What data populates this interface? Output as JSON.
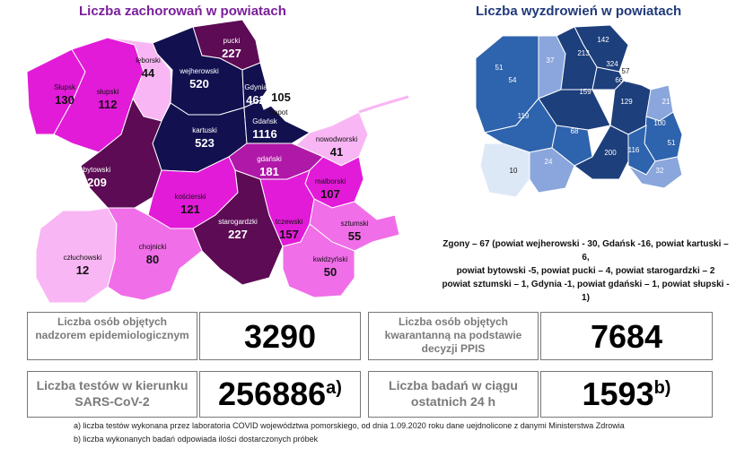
{
  "left_map": {
    "title": "Liczba zachorowań w powiatach",
    "districts": [
      {
        "name": "lęborski",
        "value": "44",
        "color": "#f9b6f4"
      },
      {
        "name": "pucki",
        "value": "227",
        "color": "#5c0b54"
      },
      {
        "name": "wejherowski",
        "value": "520",
        "color": "#12104f"
      },
      {
        "name": "słupski",
        "value": "112",
        "color": "#e21bd8"
      },
      {
        "name": "Słupsk",
        "value": "130",
        "color": "#e21bd8"
      },
      {
        "name": "Gdynia",
        "value": "462",
        "color": "#12104f"
      },
      {
        "name": "Sopot",
        "value": "105",
        "color": "#ffffff"
      },
      {
        "name": "kartuski",
        "value": "523",
        "color": "#12104f"
      },
      {
        "name": "Gdańsk",
        "value": "1116",
        "color": "#12104f"
      },
      {
        "name": "nowodworski",
        "value": "41",
        "color": "#f9b6f4"
      },
      {
        "name": "bytowski",
        "value": "209",
        "color": "#5c0b54"
      },
      {
        "name": "gdański",
        "value": "181",
        "color": "#b018a8"
      },
      {
        "name": "malborski",
        "value": "107",
        "color": "#e21bd8"
      },
      {
        "name": "kościerski",
        "value": "121",
        "color": "#e21bd8"
      },
      {
        "name": "starogardzki",
        "value": "227",
        "color": "#5c0b54"
      },
      {
        "name": "tczewski",
        "value": "157",
        "color": "#e21bd8"
      },
      {
        "name": "sztumski",
        "value": "55",
        "color": "#f06ee8"
      },
      {
        "name": "człuchowski",
        "value": "12",
        "color": "#f9b6f4"
      },
      {
        "name": "chojnicki",
        "value": "80",
        "color": "#f06ee8"
      },
      {
        "name": "kwidzyński",
        "value": "50",
        "color": "#f06ee8"
      }
    ]
  },
  "right_map": {
    "title": "Liczba wyzdrowień w powiatach",
    "values": [
      "142",
      "213",
      "324",
      "57",
      "37",
      "664",
      "51",
      "54",
      "159",
      "129",
      "21",
      "119",
      "68",
      "100",
      "51",
      "10",
      "24",
      "200",
      "116",
      "32"
    ]
  },
  "deaths_note": [
    "Zgony – 67 (powiat wejherowski - 30, Gdańsk -16, powiat kartuski – 6,",
    "powiat bytowski -5, powiat pucki – 4, powiat starogardzki – 2",
    "powiat sztumski – 1, Gdynia -1, powiat gdański – 1, powiat słupski - 1)"
  ],
  "stats": {
    "supervision_label": "Liczba osób objętych nadzorem epidemiologicznym",
    "supervision_value": "3290",
    "quarantine_label": "Liczba osób objętych kwarantanną na podstawie decyzji PPIS",
    "quarantine_value": "7684",
    "tests_label": "Liczba testów w kierunku SARS-CoV-2",
    "tests_value": "256886",
    "tests_mark": "a)",
    "tests24_label": "Liczba badań w ciągu ostatnich 24 h",
    "tests24_value": "1593",
    "tests24_mark": "b)"
  },
  "footnotes": {
    "a": "a) liczba testów wykonana przez laboratoria COVID województwa pomorskiego, od dnia 1.09.2020 roku dane uejdnolicone z danymi Ministerstwa Zdrowia",
    "b": "b) liczba wykonanych badań odpowiada ilości dostarczonych próbek"
  }
}
